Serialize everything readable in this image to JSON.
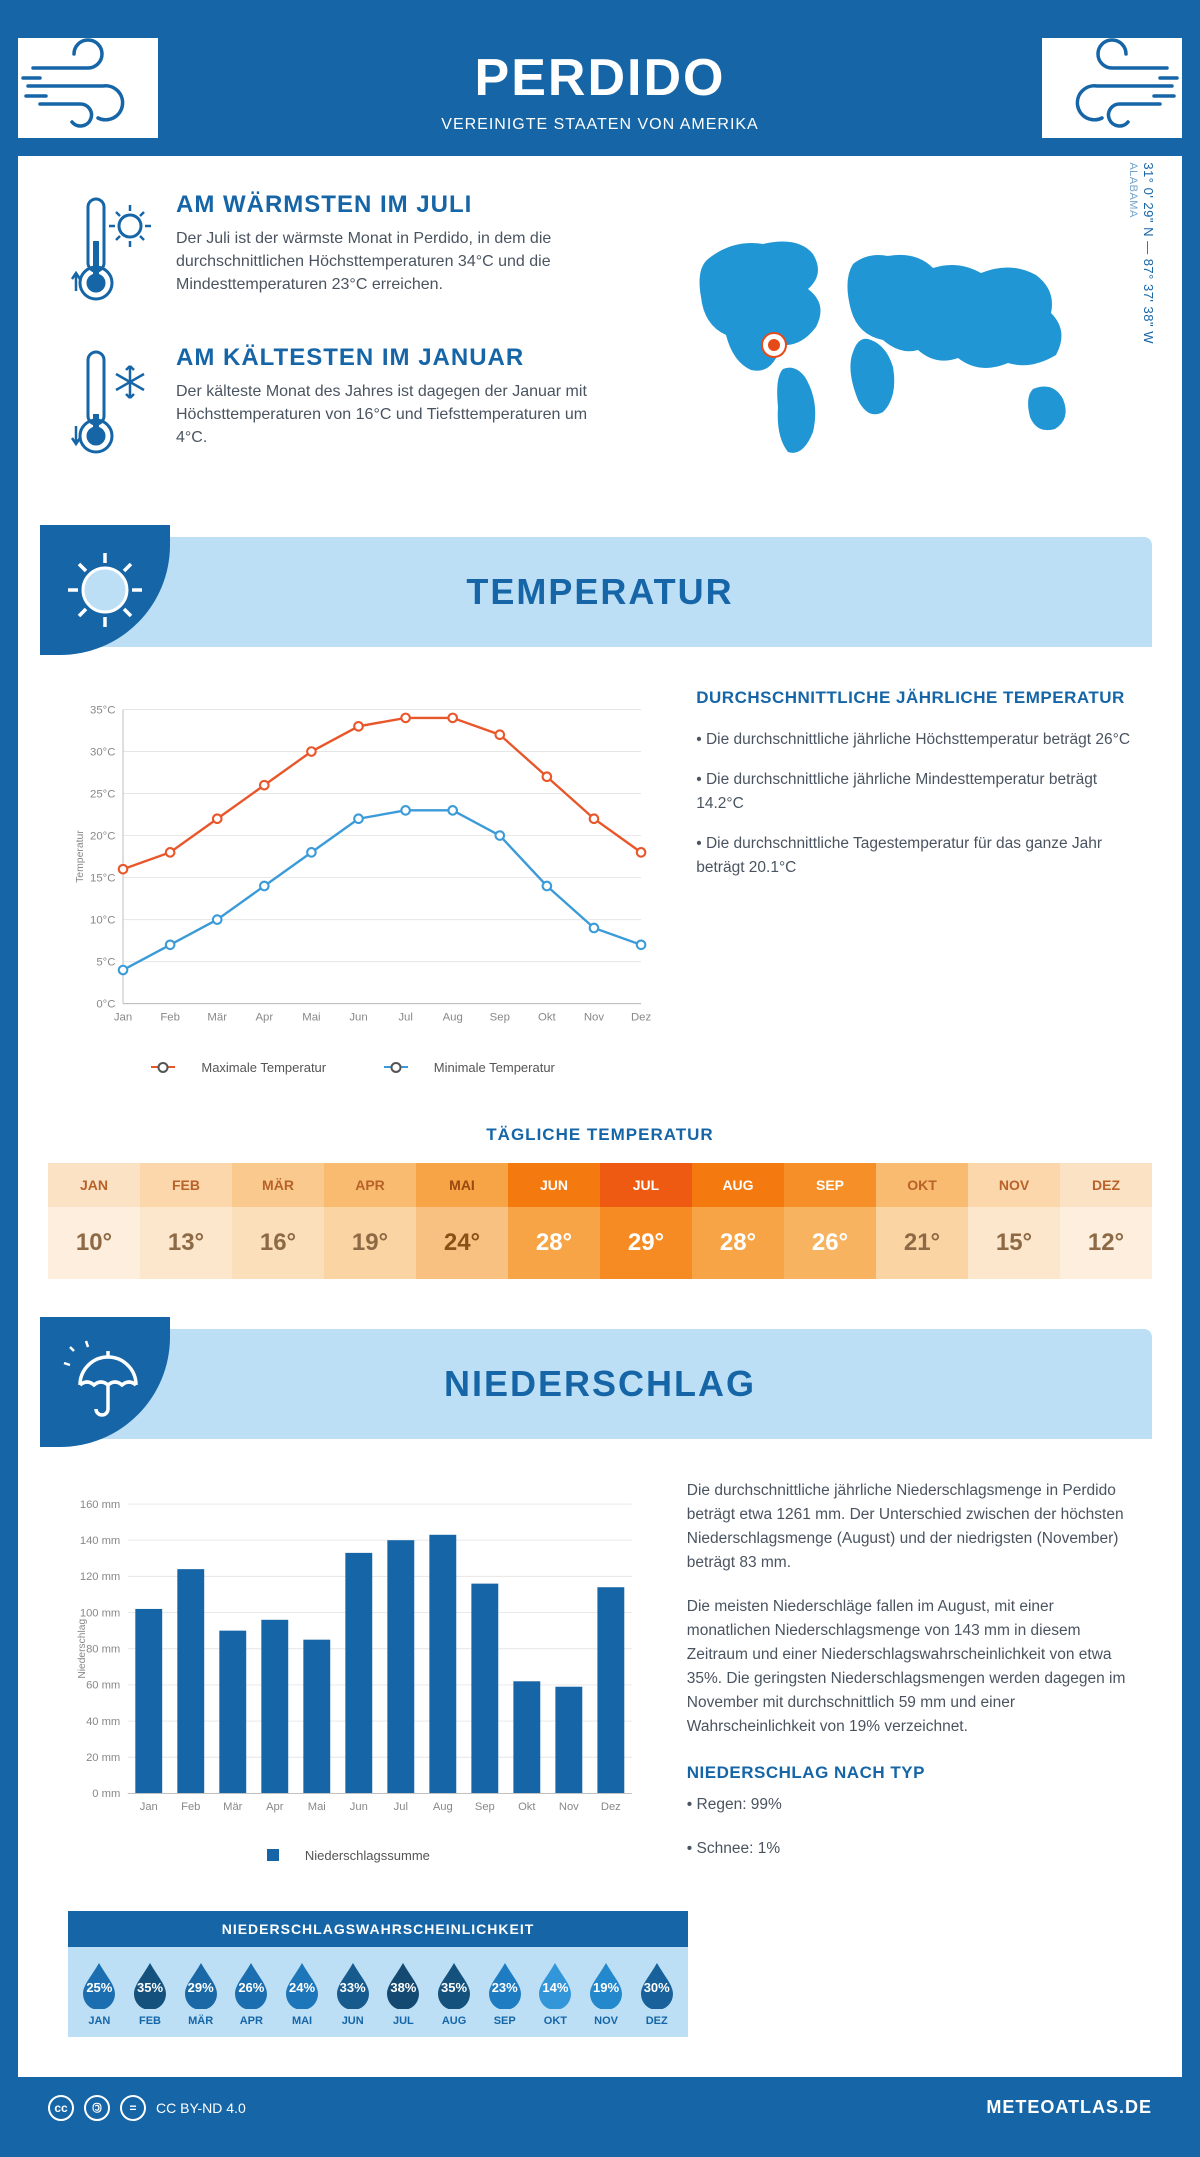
{
  "header": {
    "title": "PERDIDO",
    "subtitle": "VEREINIGTE STAATEN VON AMERIKA"
  },
  "location": {
    "coords": "31° 0' 29\" N — 87° 37' 38\" W",
    "region": "ALABAMA",
    "marker_color": "#e64a19",
    "map_color": "#2196d4"
  },
  "intro": {
    "warmest": {
      "heading": "AM WÄRMSTEN IM JULI",
      "text": "Der Juli ist der wärmste Monat in Perdido, in dem die durchschnittlichen Höchsttemperaturen 34°C und die Mindesttemperaturen 23°C erreichen."
    },
    "coldest": {
      "heading": "AM KÄLTESTEN IM JANUAR",
      "text": "Der kälteste Monat des Jahres ist dagegen der Januar mit Höchsttemperaturen von 16°C und Tiefsttemperaturen um 4°C."
    }
  },
  "sections": {
    "temperature": "TEMPERATUR",
    "precipitation": "NIEDERSCHLAG"
  },
  "temperature_chart": {
    "type": "line",
    "months": [
      "Jan",
      "Feb",
      "Mär",
      "Apr",
      "Mai",
      "Jun",
      "Jul",
      "Aug",
      "Sep",
      "Okt",
      "Nov",
      "Dez"
    ],
    "max_values": [
      16,
      18,
      22,
      26,
      30,
      33,
      34,
      34,
      32,
      27,
      22,
      18
    ],
    "min_values": [
      4,
      7,
      10,
      14,
      18,
      22,
      23,
      23,
      20,
      14,
      9,
      7
    ],
    "max_color": "#e8562a",
    "min_color": "#3b9bd8",
    "ylabel": "Temperatur",
    "ylim": [
      0,
      35
    ],
    "ytick_step": 5,
    "ytick_suffix": "°C",
    "grid_color": "#e6e6e6",
    "axis_color": "#bbbbbb",
    "marker": "circle",
    "line_width": 2.5,
    "legend_max": "Maximale Temperatur",
    "legend_min": "Minimale Temperatur"
  },
  "temperature_info": {
    "heading": "DURCHSCHNITTLICHE JÄHRLICHE TEMPERATUR",
    "bullet1": "• Die durchschnittliche jährliche Höchsttemperatur beträgt 26°C",
    "bullet2": "• Die durchschnittliche jährliche Mindesttemperatur beträgt 14.2°C",
    "bullet3": "• Die durchschnittliche Tagestemperatur für das ganze Jahr beträgt 20.1°C"
  },
  "daily_temp": {
    "heading": "TÄGLICHE TEMPERATUR",
    "months": [
      "JAN",
      "FEB",
      "MÄR",
      "APR",
      "MAI",
      "JUN",
      "JUL",
      "AUG",
      "SEP",
      "OKT",
      "NOV",
      "DEZ"
    ],
    "values": [
      "10°",
      "13°",
      "16°",
      "19°",
      "24°",
      "28°",
      "29°",
      "28°",
      "26°",
      "21°",
      "15°",
      "12°"
    ],
    "header_colors": [
      "#fce2c4",
      "#fbd7ab",
      "#fac98d",
      "#f9bb6f",
      "#f6a445",
      "#f4790f",
      "#ee5a11",
      "#f4790f",
      "#f68f27",
      "#f9bb6f",
      "#fbd7ab",
      "#fce2c4"
    ],
    "header_text_colors": [
      "#b8622a",
      "#b8622a",
      "#b8622a",
      "#b8622a",
      "#9a4810",
      "#ffffff",
      "#ffffff",
      "#ffffff",
      "#ffffff",
      "#b8622a",
      "#b8622a",
      "#b8622a"
    ],
    "value_colors": [
      "#fdeedd",
      "#fce7cd",
      "#fbdfba",
      "#fad5a3",
      "#f8c181",
      "#f6a445",
      "#f58b22",
      "#f6a445",
      "#f7b35f",
      "#fad5a3",
      "#fce7cd",
      "#fdeedd"
    ],
    "value_text_colors": [
      "#8d6a45",
      "#8d6a45",
      "#8d6a45",
      "#8d6a45",
      "#8a5018",
      "#ffffff",
      "#ffffff",
      "#ffffff",
      "#ffffff",
      "#8d6a45",
      "#8d6a45",
      "#8d6a45"
    ]
  },
  "precip_chart": {
    "type": "bar",
    "months": [
      "Jan",
      "Feb",
      "Mär",
      "Apr",
      "Mai",
      "Jun",
      "Jul",
      "Aug",
      "Sep",
      "Okt",
      "Nov",
      "Dez"
    ],
    "values": [
      102,
      124,
      90,
      96,
      85,
      133,
      140,
      143,
      116,
      62,
      59,
      114
    ],
    "bar_color": "#1565a7",
    "ylabel": "Niederschlag",
    "ylim": [
      0,
      160
    ],
    "ytick_step": 20,
    "ytick_suffix": " mm",
    "grid_color": "#e6e6e6",
    "legend": "Niederschlagssumme"
  },
  "precip_info": {
    "para1": "Die durchschnittliche jährliche Niederschlagsmenge in Perdido beträgt etwa 1261 mm. Der Unterschied zwischen der höchsten Niederschlagsmenge (August) und der niedrigsten (November) beträgt 83 mm.",
    "para2": "Die meisten Niederschläge fallen im August, mit einer monatlichen Niederschlagsmenge von 143 mm in diesem Zeitraum und einer Niederschlagswahrscheinlichkeit von etwa 35%. Die geringsten Niederschlagsmengen werden dagegen im November mit durchschnittlich 59 mm und einer Wahrscheinlichkeit von 19% verzeichnet.",
    "type_heading": "NIEDERSCHLAG NACH TYP",
    "type_rain": "• Regen: 99%",
    "type_snow": "• Schnee: 1%"
  },
  "precip_probability": {
    "heading": "NIEDERSCHLAGSWAHRSCHEINLICHKEIT",
    "months": [
      "JAN",
      "FEB",
      "MÄR",
      "APR",
      "MAI",
      "JUN",
      "JUL",
      "AUG",
      "SEP",
      "OKT",
      "NOV",
      "DEZ"
    ],
    "values": [
      "25%",
      "35%",
      "29%",
      "26%",
      "24%",
      "33%",
      "38%",
      "35%",
      "23%",
      "14%",
      "19%",
      "30%"
    ],
    "drop_colors": [
      "#1b6fb0",
      "#15517d",
      "#1a69a6",
      "#1b6fb0",
      "#1d76ba",
      "#175b8e",
      "#144a71",
      "#15517d",
      "#1e7cc2",
      "#3296d8",
      "#2388cc",
      "#18619a"
    ]
  },
  "footer": {
    "license": "CC BY-ND 4.0",
    "site": "METEOATLAS.DE"
  },
  "colors": {
    "brand": "#1565a7",
    "banner_bg": "#bcdff5"
  }
}
